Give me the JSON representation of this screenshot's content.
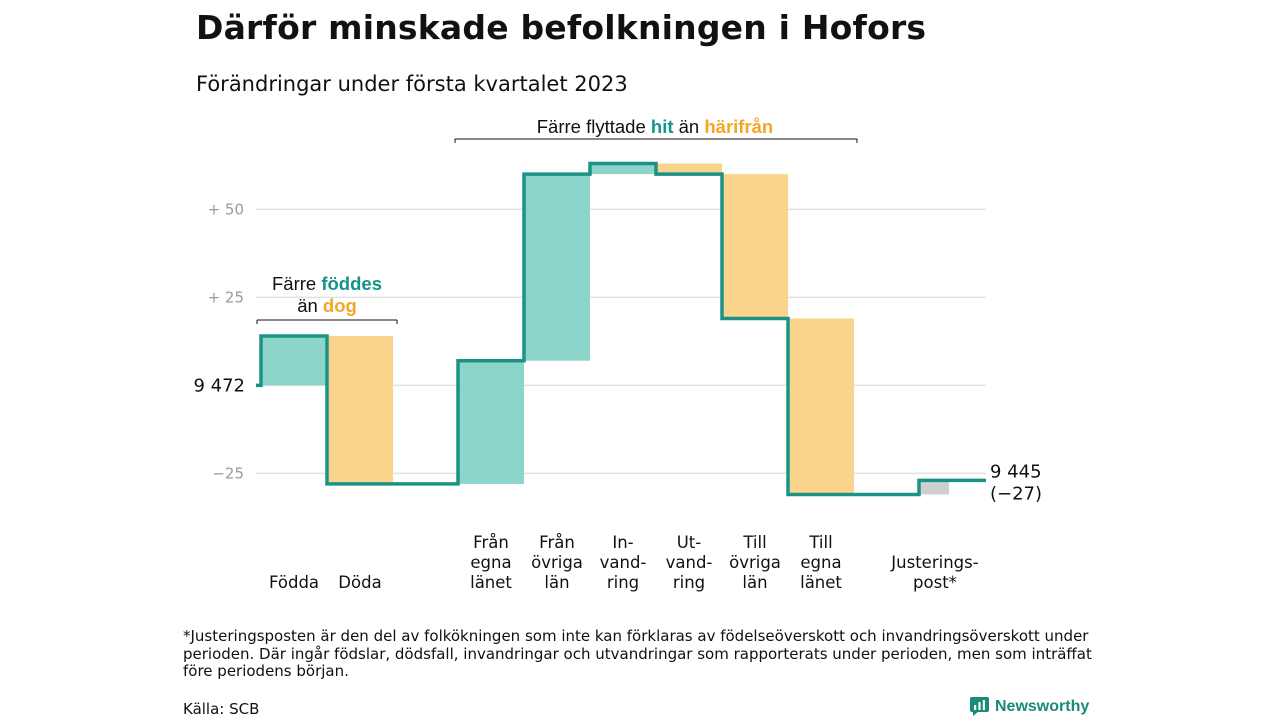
{
  "title": "Därför minskade befolkningen i Hofors",
  "subtitle": "Förändringar under första kvartalet 2023",
  "footnote": "*Justeringsposten är den del av folkökningen som inte kan förklaras av födelseöverskott och invandringsöverskott under perioden. Där ingår födslar, dödsfall, invandringar och utvandringar som rapporterats under perioden, men som inträffat före periodens början.",
  "source": "Källa: SCB",
  "logo": {
    "name": "Newsworthy"
  },
  "colors": {
    "increase": "#8dd5cb",
    "decrease": "#fad48c",
    "adjustment": "#cfcfcf",
    "line": "#1a9386",
    "grid": "#e2e2e2",
    "tick": "#9a9a9a"
  },
  "chart_data": {
    "type": "waterfall",
    "start": {
      "value": 9472,
      "label": "9 472"
    },
    "end": {
      "value": 9445,
      "label": "9 445",
      "change_label": "(−27)"
    },
    "ylim": [
      -32,
      66
    ],
    "y_ticks": [
      {
        "value": 50,
        "label": "+ 50"
      },
      {
        "value": 25,
        "label": "+ 25"
      },
      {
        "value": 0,
        "label": ""
      },
      {
        "value": -25,
        "label": "−25"
      }
    ],
    "steps": [
      {
        "category": "Födda",
        "lines": [
          "Födda"
        ],
        "value": 14,
        "kind": "increase"
      },
      {
        "category": "Döda",
        "lines": [
          "Döda"
        ],
        "value": -42,
        "kind": "decrease"
      },
      {
        "category": "Från egna länet",
        "lines": [
          "Från",
          "egna",
          "länet"
        ],
        "value": 35,
        "kind": "increase"
      },
      {
        "category": "Från övriga län",
        "lines": [
          "Från",
          "övriga",
          "län"
        ],
        "value": 53,
        "kind": "increase"
      },
      {
        "category": "Invandring",
        "lines": [
          "In-",
          "vand-",
          "ring"
        ],
        "value": 3,
        "kind": "increase"
      },
      {
        "category": "Utvandring",
        "lines": [
          "Ut-",
          "vand-",
          "ring"
        ],
        "value": -3,
        "kind": "decrease"
      },
      {
        "category": "Till övriga län",
        "lines": [
          "Till",
          "övriga",
          "län"
        ],
        "value": -41,
        "kind": "decrease"
      },
      {
        "category": "Till egna länet",
        "lines": [
          "Till",
          "egna",
          "länet"
        ],
        "value": -50,
        "kind": "decrease"
      },
      {
        "category": "Justeringspost*",
        "lines": [
          "Justerings-",
          "post*"
        ],
        "value": 4,
        "kind": "adjustment"
      }
    ],
    "annotations": [
      {
        "id": "births",
        "spans": [
          0,
          1
        ],
        "line1": [
          "Färre ",
          "föddes"
        ],
        "line2": [
          "än ",
          "dog"
        ]
      },
      {
        "id": "moves",
        "spans": [
          2,
          7
        ],
        "line1": [
          "Färre flyttade ",
          "hit",
          " än ",
          "härifrån"
        ]
      }
    ]
  }
}
